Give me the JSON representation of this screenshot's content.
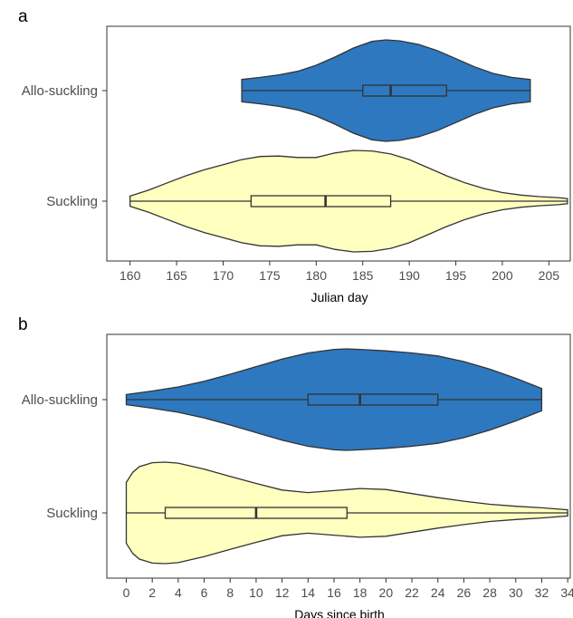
{
  "chart_data": [
    {
      "panel_label": "a",
      "type": "violin",
      "xlabel": "Julian day",
      "xlim": [
        157.5,
        207.3
      ],
      "xticks": [
        160,
        165,
        170,
        175,
        180,
        185,
        190,
        195,
        200,
        205
      ],
      "categories": [
        "Allo-suckling",
        "Suckling"
      ],
      "series": [
        {
          "category": "Allo-suckling",
          "color": "#2d78bf",
          "min": 172,
          "q1": 185,
          "median": 188,
          "q3": 194,
          "max": 203,
          "density": [
            [
              172,
              0.22
            ],
            [
              174,
              0.26
            ],
            [
              176,
              0.31
            ],
            [
              178,
              0.38
            ],
            [
              180,
              0.5
            ],
            [
              182,
              0.66
            ],
            [
              184,
              0.84
            ],
            [
              186,
              0.97
            ],
            [
              187.5,
              1.0
            ],
            [
              189,
              0.98
            ],
            [
              191,
              0.91
            ],
            [
              193,
              0.79
            ],
            [
              195,
              0.63
            ],
            [
              197,
              0.47
            ],
            [
              199,
              0.34
            ],
            [
              201,
              0.26
            ],
            [
              203,
              0.22
            ]
          ]
        },
        {
          "category": "Suckling",
          "color": "#ffffc0",
          "min": 160,
          "q1": 173,
          "median": 181,
          "q3": 188,
          "max": 207,
          "density": [
            [
              160,
              0.1
            ],
            [
              162,
              0.22
            ],
            [
              164,
              0.36
            ],
            [
              166,
              0.5
            ],
            [
              168,
              0.62
            ],
            [
              170,
              0.72
            ],
            [
              172,
              0.82
            ],
            [
              174,
              0.88
            ],
            [
              176,
              0.89
            ],
            [
              178,
              0.86
            ],
            [
              180,
              0.86
            ],
            [
              182,
              0.95
            ],
            [
              184,
              1.0
            ],
            [
              186,
              0.99
            ],
            [
              188,
              0.93
            ],
            [
              190,
              0.82
            ],
            [
              192,
              0.66
            ],
            [
              194,
              0.5
            ],
            [
              196,
              0.36
            ],
            [
              198,
              0.25
            ],
            [
              200,
              0.17
            ],
            [
              202,
              0.12
            ],
            [
              204,
              0.09
            ],
            [
              206,
              0.07
            ],
            [
              207,
              0.05
            ]
          ]
        }
      ]
    },
    {
      "panel_label": "b",
      "type": "violin",
      "xlabel": "Days since birth",
      "xlim": [
        -1.5,
        34.2
      ],
      "xticks": [
        0,
        2,
        4,
        6,
        8,
        10,
        12,
        14,
        16,
        18,
        20,
        22,
        24,
        26,
        28,
        30,
        32,
        34
      ],
      "categories": [
        "Allo-suckling",
        "Suckling"
      ],
      "series": [
        {
          "category": "Allo-suckling",
          "color": "#2d78bf",
          "min": 0,
          "q1": 14,
          "median": 18,
          "q3": 24,
          "max": 32,
          "density": [
            [
              0,
              0.1
            ],
            [
              2,
              0.17
            ],
            [
              4,
              0.25
            ],
            [
              6,
              0.36
            ],
            [
              8,
              0.5
            ],
            [
              10,
              0.65
            ],
            [
              12,
              0.8
            ],
            [
              14,
              0.92
            ],
            [
              16,
              0.99
            ],
            [
              17,
              1.0
            ],
            [
              18,
              0.99
            ],
            [
              20,
              0.96
            ],
            [
              22,
              0.92
            ],
            [
              24,
              0.86
            ],
            [
              26,
              0.75
            ],
            [
              28,
              0.6
            ],
            [
              30,
              0.42
            ],
            [
              32,
              0.22
            ]
          ]
        },
        {
          "category": "Suckling",
          "color": "#ffffc0",
          "min": 0,
          "q1": 3,
          "median": 10,
          "q3": 17,
          "max": 34,
          "density": [
            [
              0,
              0.6
            ],
            [
              0.5,
              0.8
            ],
            [
              1,
              0.91
            ],
            [
              2,
              0.99
            ],
            [
              3,
              1.0
            ],
            [
              4,
              0.98
            ],
            [
              6,
              0.86
            ],
            [
              8,
              0.72
            ],
            [
              10,
              0.58
            ],
            [
              12,
              0.45
            ],
            [
              14,
              0.4
            ],
            [
              16,
              0.44
            ],
            [
              18,
              0.48
            ],
            [
              20,
              0.46
            ],
            [
              22,
              0.38
            ],
            [
              24,
              0.3
            ],
            [
              26,
              0.23
            ],
            [
              28,
              0.17
            ],
            [
              30,
              0.13
            ],
            [
              32,
              0.1
            ],
            [
              34,
              0.06
            ]
          ]
        }
      ]
    }
  ]
}
